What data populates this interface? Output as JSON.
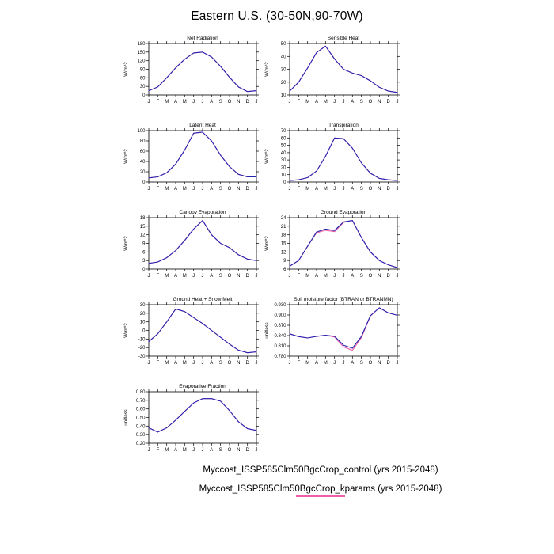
{
  "page": {
    "title": "Eastern U.S. (30-50N,90-70W)"
  },
  "months": [
    "J",
    "F",
    "M",
    "A",
    "M",
    "J",
    "J",
    "A",
    "S",
    "O",
    "N",
    "D",
    "J"
  ],
  "colors": {
    "control": "#2424b0",
    "kparams": "#ee5fa7"
  },
  "legend": [
    {
      "label": "Myccost_ISSP585Clm50BgcCrop_control (yrs 2015-2048)",
      "color": "#2424b0",
      "show_swatch": false
    },
    {
      "label": "Myccost_ISSP585Clm50BgcCrop_kparams (yrs 2015-2048)",
      "color": "#ee5fa7",
      "show_swatch": true
    }
  ],
  "chart_data": [
    {
      "id": "net-radiation",
      "type": "line",
      "title": "Net Radiation",
      "ylabel": "W/m^2",
      "categories": [
        "J",
        "F",
        "M",
        "A",
        "M",
        "J",
        "J",
        "A",
        "S",
        "O",
        "N",
        "D",
        "J"
      ],
      "ylim": [
        0,
        180
      ],
      "yticks": [
        "0",
        "30",
        "60",
        "90",
        "120",
        "150",
        "180"
      ],
      "series": [
        {
          "name": "control",
          "values": [
            15,
            28,
            60,
            95,
            125,
            147,
            150,
            133,
            100,
            62,
            28,
            12,
            15
          ]
        },
        {
          "name": "kparams",
          "values": [
            15,
            28,
            60,
            95,
            125,
            147,
            150,
            133,
            100,
            62,
            28,
            12,
            15
          ]
        }
      ]
    },
    {
      "id": "sensible-heat",
      "type": "line",
      "title": "Sensible Heat",
      "ylabel": "W/m^2",
      "categories": [
        "J",
        "F",
        "M",
        "A",
        "M",
        "J",
        "J",
        "A",
        "S",
        "O",
        "N",
        "D",
        "J"
      ],
      "ylim": [
        10,
        50
      ],
      "yticks": [
        "10",
        "20",
        "30",
        "40",
        "50"
      ],
      "series": [
        {
          "name": "control",
          "values": [
            13,
            20,
            31,
            43,
            48,
            38,
            30,
            27,
            25,
            21,
            16,
            13,
            12
          ]
        },
        {
          "name": "kparams",
          "values": [
            13,
            20,
            31,
            43,
            48,
            38,
            30,
            27,
            25,
            21,
            16,
            13,
            12
          ]
        }
      ]
    },
    {
      "id": "latent-heat",
      "type": "line",
      "title": "Latent Heat",
      "ylabel": "W/m^2",
      "categories": [
        "J",
        "F",
        "M",
        "A",
        "M",
        "J",
        "J",
        "A",
        "S",
        "O",
        "N",
        "D",
        "J"
      ],
      "ylim": [
        0,
        100
      ],
      "yticks": [
        "0",
        "20",
        "40",
        "60",
        "80",
        "100"
      ],
      "series": [
        {
          "name": "control",
          "values": [
            8,
            10,
            18,
            35,
            62,
            95,
            97,
            80,
            52,
            30,
            15,
            10,
            10
          ]
        },
        {
          "name": "kparams",
          "values": [
            8,
            10,
            18,
            35,
            62,
            95,
            97,
            80,
            52,
            30,
            15,
            10,
            10
          ]
        }
      ]
    },
    {
      "id": "transpiration",
      "type": "line",
      "title": "Transpiration",
      "ylabel": "W/m^2",
      "categories": [
        "J",
        "F",
        "M",
        "A",
        "M",
        "J",
        "J",
        "A",
        "S",
        "O",
        "N",
        "D",
        "J"
      ],
      "ylim": [
        0,
        70
      ],
      "yticks": [
        "0",
        "10",
        "20",
        "30",
        "40",
        "50",
        "60",
        "70"
      ],
      "series": [
        {
          "name": "control",
          "values": [
            2,
            3,
            6,
            15,
            35,
            60,
            59,
            46,
            26,
            12,
            5,
            3,
            2
          ]
        },
        {
          "name": "kparams",
          "values": [
            2,
            3,
            6,
            15,
            35,
            60,
            59,
            46,
            26,
            12,
            5,
            3,
            2
          ]
        }
      ]
    },
    {
      "id": "canopy-evaporation",
      "type": "line",
      "title": "Canopy Evaporation",
      "ylabel": "W/m^2",
      "categories": [
        "J",
        "F",
        "M",
        "A",
        "M",
        "J",
        "J",
        "A",
        "S",
        "O",
        "N",
        "D",
        "J"
      ],
      "ylim": [
        0,
        18
      ],
      "yticks": [
        "0",
        "3",
        "6",
        "9",
        "12",
        "15",
        "18"
      ],
      "series": [
        {
          "name": "control",
          "values": [
            2,
            2.5,
            4,
            6.5,
            10,
            14,
            17,
            12,
            9,
            7.5,
            5,
            3.5,
            3
          ]
        },
        {
          "name": "kparams",
          "values": [
            2,
            2.5,
            4,
            6.5,
            10,
            14,
            17,
            12,
            9,
            7.5,
            5,
            3.5,
            3
          ]
        }
      ]
    },
    {
      "id": "ground-evaporation",
      "type": "line",
      "title": "Ground Evaporation",
      "ylabel": "W/m^2",
      "categories": [
        "J",
        "F",
        "M",
        "A",
        "M",
        "J",
        "J",
        "A",
        "S",
        "O",
        "N",
        "D",
        "J"
      ],
      "ylim": [
        6,
        24
      ],
      "yticks": [
        "6",
        "9",
        "12",
        "15",
        "18",
        "21",
        "24"
      ],
      "series": [
        {
          "name": "control",
          "values": [
            7,
            9,
            14,
            19,
            20,
            19.5,
            22.5,
            23,
            17,
            12,
            9,
            7.5,
            6.5
          ]
        },
        {
          "name": "kparams",
          "values": [
            7,
            9,
            14,
            18.7,
            19.6,
            19.1,
            22.3,
            23,
            17,
            12,
            9,
            7.5,
            6.5
          ]
        }
      ]
    },
    {
      "id": "ground-heat-snow-melt",
      "type": "line",
      "title": "Ground Heat + Snow Melt",
      "ylabel": "W/m^2",
      "categories": [
        "J",
        "F",
        "M",
        "A",
        "M",
        "J",
        "J",
        "A",
        "S",
        "O",
        "N",
        "D",
        "J"
      ],
      "ylim": [
        -30,
        30
      ],
      "yticks": [
        "-30",
        "-20",
        "-10",
        "0",
        "10",
        "20",
        "30"
      ],
      "series": [
        {
          "name": "control",
          "values": [
            -13,
            -4,
            10,
            25,
            22,
            15,
            8,
            0,
            -8,
            -16,
            -23,
            -26,
            -25
          ]
        },
        {
          "name": "kparams",
          "values": [
            -13,
            -4,
            10,
            25,
            22,
            15,
            8,
            0,
            -8,
            -16,
            -23,
            -26,
            -25
          ]
        }
      ]
    },
    {
      "id": "soil-moisture-factor",
      "type": "line",
      "title": "Soil moisture factor (BTRAN or BTRANMN)",
      "ylabel": "unitless",
      "categories": [
        "J",
        "F",
        "M",
        "A",
        "M",
        "J",
        "J",
        "A",
        "S",
        "O",
        "N",
        "D",
        "J"
      ],
      "ylim": [
        0.78,
        0.93
      ],
      "yticks": [
        "0.780",
        "0.810",
        "0.840",
        "0.870",
        "0.900",
        "0.930"
      ],
      "series": [
        {
          "name": "control",
          "values": [
            0.845,
            0.837,
            0.833,
            0.838,
            0.841,
            0.838,
            0.812,
            0.803,
            0.838,
            0.898,
            0.921,
            0.906,
            0.899
          ]
        },
        {
          "name": "kparams",
          "values": [
            0.845,
            0.837,
            0.833,
            0.838,
            0.841,
            0.836,
            0.807,
            0.797,
            0.834,
            0.897,
            0.921,
            0.906,
            0.899
          ]
        }
      ]
    },
    {
      "id": "evaporative-fraction",
      "type": "line",
      "title": "Evaporative Fraction",
      "ylabel": "unitless",
      "categories": [
        "J",
        "F",
        "M",
        "A",
        "M",
        "J",
        "J",
        "A",
        "S",
        "O",
        "N",
        "D",
        "J"
      ],
      "ylim": [
        0.2,
        0.8
      ],
      "yticks": [
        "0.20",
        "0.30",
        "0.40",
        "0.50",
        "0.60",
        "0.70",
        "0.80"
      ],
      "series": [
        {
          "name": "control",
          "values": [
            0.38,
            0.33,
            0.38,
            0.47,
            0.57,
            0.67,
            0.72,
            0.72,
            0.69,
            0.58,
            0.45,
            0.37,
            0.35
          ]
        },
        {
          "name": "kparams",
          "values": [
            0.38,
            0.33,
            0.38,
            0.47,
            0.57,
            0.67,
            0.72,
            0.72,
            0.69,
            0.58,
            0.45,
            0.37,
            0.35
          ]
        }
      ]
    }
  ]
}
